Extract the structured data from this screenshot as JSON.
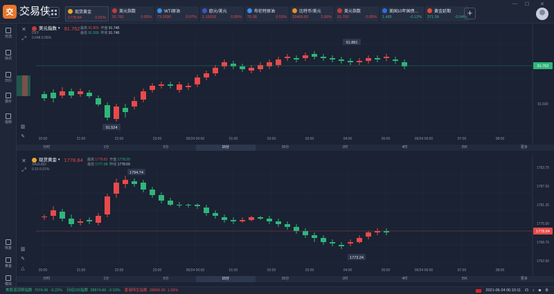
{
  "app": {
    "logo_mark": "交",
    "name": "交易侠",
    "subtitle": "TRADER MASTER"
  },
  "tickers": [
    {
      "name": "现货黄金",
      "price": "1778.84",
      "change": "0.01%",
      "icon_color": "#e8a92b",
      "dir": "red"
    },
    {
      "name": "美元指数",
      "price": "91.762",
      "change": "0.05%",
      "icon_color": "#c23b3b",
      "dir": "red"
    },
    {
      "name": "WTI原油",
      "price": "73.2690",
      "change": "0.07%",
      "icon_color": "#3b8ee8",
      "dir": "red"
    },
    {
      "name": "欧元/美元",
      "price": "1.19318",
      "change": "0.05%",
      "icon_color": "#3b56c2",
      "dir": "red"
    },
    {
      "name": "布伦特原油",
      "price": "75.38",
      "change": "0.53%",
      "icon_color": "#3b8ee8",
      "dir": "red"
    },
    {
      "name": "比特币/美元",
      "price": "33409.69",
      "change": "2.66%",
      "icon_color": "#e8902b",
      "dir": "red"
    },
    {
      "name": "美元指数",
      "price": "91.762",
      "change": "0.05%",
      "icon_color": "#c23b3b",
      "dir": "red"
    },
    {
      "name": "美国10年国债…",
      "price": "1.485",
      "change": "-0.12%",
      "icon_color": "#2b6ee8",
      "dir": "green"
    },
    {
      "name": "黄金延期",
      "price": "371.58",
      "change": "-0.04%",
      "icon_color": "#e84a2b",
      "dir": "green"
    }
  ],
  "sidebar": [
    {
      "label": "自选",
      "icon": "star-icon"
    },
    {
      "label": "快讯",
      "icon": "news-icon"
    },
    {
      "label": "日历",
      "icon": "calendar-icon"
    },
    {
      "label": "报价",
      "icon": "quote-icon"
    },
    {
      "label": "视频",
      "icon": "video-icon"
    },
    {
      "label": "恢复",
      "icon": "restore-icon"
    },
    {
      "label": "黄金",
      "icon": "gold-icon"
    },
    {
      "label": "模拟",
      "icon": "simulate-icon"
    }
  ],
  "panel1": {
    "name": "美元指数",
    "code": "DXY",
    "price": "91.762",
    "change": "0.048",
    "change_pct": "0.05%",
    "stats": {
      "high_label": "最高",
      "high": "91.800",
      "open_label": "开盘",
      "open": "91.748",
      "low_label": "最低",
      "low": "91.509",
      "prev_label": "昨收",
      "prev": "91.748"
    },
    "price_tag": "91.762",
    "axis_label": "91.600",
    "high_marker": "91.881",
    "low_marker": "91.524",
    "time_labels": [
      "20:00",
      "21:00",
      "22:00",
      "23:00",
      "06/24 00:00",
      "01:00",
      "02:00",
      "03:00",
      "04:00",
      "05:00",
      "06/24 06:00",
      "07:00",
      "08:00"
    ],
    "timeframes": [
      "分时",
      "1分",
      "5分",
      "15分",
      "30分",
      "1时",
      "4时",
      "日K",
      "更多"
    ]
  },
  "panel2": {
    "name": "现货黄金",
    "code": "XAUUSD",
    "price": "1778.84",
    "change": "0.15",
    "change_pct": "0.01%",
    "stats": {
      "high_label": "最高",
      "high": "1778.82",
      "open_label": "开盘",
      "open": "1778.20",
      "low_label": "最低",
      "low": "1777.98",
      "prev_label": "昨收",
      "prev": "1778.69"
    },
    "price_tag": "1778.84",
    "y_labels": [
      "1793.75",
      "1787.50",
      "1781.25",
      "1775.00",
      "1768.75",
      "1762.50"
    ],
    "high_marker": "1794.74",
    "low_marker": "1773.24",
    "time_labels": [
      "20:00",
      "21:00",
      "22:00",
      "23:00",
      "06/24 00:00",
      "01:00",
      "02:00",
      "03:00",
      "04:00",
      "05:00",
      "06/24 06:00",
      "07:00",
      "08:00"
    ],
    "timeframes": [
      "分时",
      "1分",
      "5分",
      "15分",
      "30分",
      "1时",
      "4时",
      "日K",
      "更多"
    ]
  },
  "statusbar": {
    "items": [
      {
        "name": "美股道琼斯指数",
        "value": "7074.06",
        "change": "-0.22%",
        "dir": "green"
      },
      {
        "name": "日经225指数",
        "value": "28874.89",
        "change": "-0.03%",
        "dir": "green"
      },
      {
        "name": "香港恒生指数",
        "value": "28809.00",
        "change": "1.06%",
        "dir": "red"
      }
    ],
    "datetime": "2021-06-24 06:10:11"
  }
}
